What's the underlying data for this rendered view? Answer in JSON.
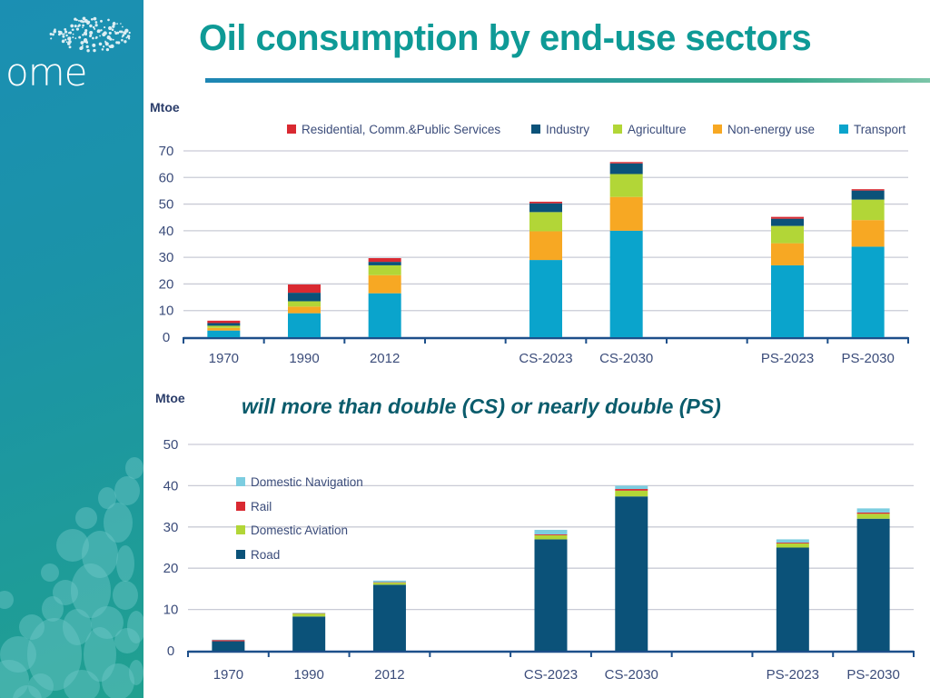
{
  "page": {
    "logo_text": "ome",
    "title": "Oil consumption by end-use sectors",
    "subtitle": "will  more than double (CS) or nearly double (PS)"
  },
  "chart_data": [
    {
      "type": "bar",
      "stacked": true,
      "title": "",
      "ylabel": "Mtoe",
      "xlabel": "",
      "ylim": [
        0,
        70
      ],
      "yticks": [
        0,
        10,
        20,
        30,
        40,
        50,
        60,
        70
      ],
      "grid": true,
      "legend_position": "top",
      "slots": [
        "1970",
        "1990",
        "2012",
        "",
        "CS-2023",
        "CS-2030",
        "",
        "PS-2023",
        "PS-2030"
      ],
      "categories": [
        "1970",
        "1990",
        "2012",
        "CS-2023",
        "CS-2030",
        "PS-2023",
        "PS-2030"
      ],
      "legend_order": [
        "Residential, Comm.&Public Services",
        "Industry",
        "Agriculture",
        "Non-energy use",
        "Transport"
      ],
      "series": [
        {
          "name": "Transport",
          "color": "#0aa4cc",
          "values": [
            2.5,
            9.0,
            16.5,
            29.0,
            40.0,
            27.0,
            34.0
          ]
        },
        {
          "name": "Non-energy use",
          "color": "#f7a823",
          "values": [
            1.0,
            2.5,
            6.8,
            10.8,
            12.7,
            8.3,
            10.0
          ]
        },
        {
          "name": "Agriculture",
          "color": "#b2d637",
          "values": [
            0.8,
            2.0,
            3.7,
            7.2,
            8.6,
            6.5,
            7.7
          ]
        },
        {
          "name": "Industry",
          "color": "#0b5279",
          "values": [
            1.0,
            3.2,
            1.3,
            3.3,
            4.0,
            2.7,
            3.4
          ]
        },
        {
          "name": "Residential, Comm.&Public Services",
          "color": "#d92931",
          "values": [
            0.9,
            3.1,
            1.4,
            0.6,
            0.5,
            0.7,
            0.5
          ]
        }
      ]
    },
    {
      "type": "bar",
      "stacked": true,
      "title": "",
      "ylabel": "Mtoe",
      "xlabel": "",
      "ylim": [
        0,
        50
      ],
      "yticks": [
        0,
        10,
        20,
        30,
        40,
        50
      ],
      "grid": true,
      "legend_position": "top-left",
      "slots": [
        "1970",
        "1990",
        "2012",
        "",
        "CS-2023",
        "CS-2030",
        "",
        "PS-2023",
        "PS-2030"
      ],
      "categories": [
        "1970",
        "1990",
        "2012",
        "CS-2023",
        "CS-2030",
        "PS-2023",
        "PS-2030"
      ],
      "legend_order": [
        "Domestic Navigation",
        "Rail",
        "Domestic Aviation",
        "Road"
      ],
      "series": [
        {
          "name": "Road",
          "color": "#0b5279",
          "values": [
            2.3,
            8.3,
            16.0,
            27.0,
            37.4,
            25.0,
            32.0
          ]
        },
        {
          "name": "Domestic Aviation",
          "color": "#b2d637",
          "values": [
            0.0,
            0.7,
            0.5,
            1.0,
            1.4,
            1.0,
            1.2
          ]
        },
        {
          "name": "Rail",
          "color": "#d92931",
          "values": [
            0.3,
            0.1,
            0.1,
            0.2,
            0.4,
            0.2,
            0.3
          ]
        },
        {
          "name": "Domestic Navigation",
          "color": "#7ccde0",
          "values": [
            0.1,
            0.1,
            0.4,
            1.1,
            0.8,
            0.8,
            1.0
          ]
        }
      ]
    }
  ]
}
